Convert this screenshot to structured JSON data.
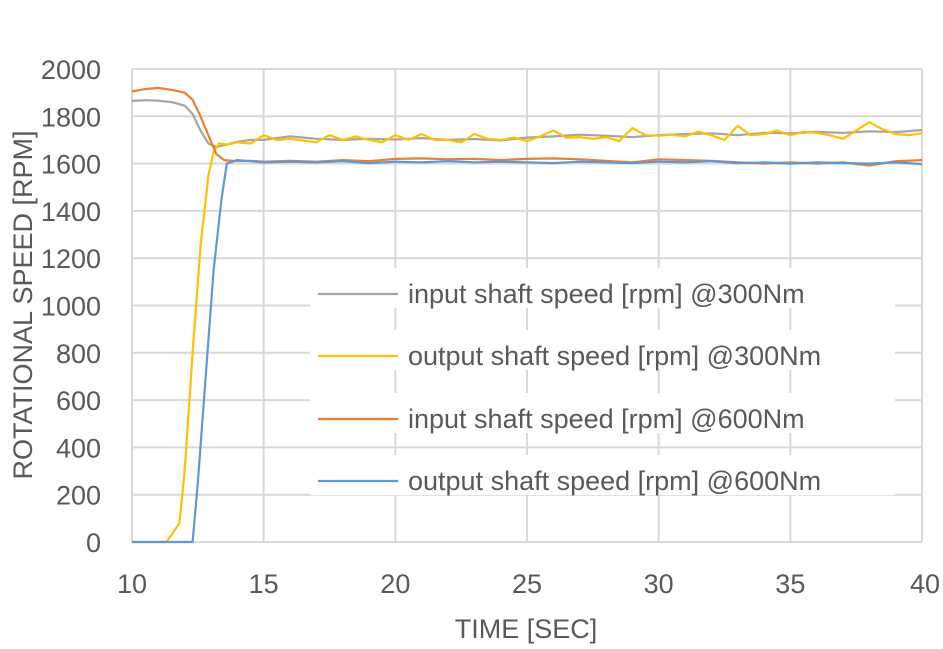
{
  "chart_data": {
    "type": "line",
    "title": "",
    "xlabel": "TIME [SEC]",
    "ylabel": "ROTATIONAL SPEED [RPM]",
    "xlim": [
      10,
      40
    ],
    "ylim": [
      0,
      2000
    ],
    "xticks": [
      10,
      15,
      20,
      25,
      30,
      35,
      40
    ],
    "yticks": [
      0,
      200,
      400,
      600,
      800,
      1000,
      1200,
      1400,
      1600,
      1800,
      2000
    ],
    "grid": true,
    "legend_position": "center-right",
    "series": [
      {
        "name": "input shaft speed [rpm] @300Nm",
        "color": "#a5a5a5",
        "x": [
          10,
          10.5,
          11,
          11.5,
          12,
          12.3,
          12.6,
          12.9,
          13.2,
          13.5,
          14,
          14.5,
          15,
          15.5,
          16,
          17,
          18,
          19,
          20,
          21,
          22,
          23,
          24,
          25,
          26,
          27,
          28,
          29,
          30,
          31,
          32,
          33,
          34,
          35,
          36,
          37,
          38,
          39,
          40
        ],
        "y": [
          1865,
          1868,
          1866,
          1860,
          1845,
          1810,
          1740,
          1685,
          1670,
          1678,
          1692,
          1700,
          1700,
          1708,
          1715,
          1705,
          1700,
          1705,
          1702,
          1708,
          1700,
          1704,
          1698,
          1710,
          1715,
          1722,
          1718,
          1712,
          1720,
          1725,
          1728,
          1720,
          1730,
          1728,
          1734,
          1730,
          1736,
          1733,
          1742
        ]
      },
      {
        "name": "output shaft speed [rpm] @300Nm",
        "color": "#ffc000",
        "x": [
          10,
          10.5,
          11,
          11.3,
          11.5,
          11.8,
          12,
          12.3,
          12.6,
          12.9,
          13.1,
          13.3,
          13.6,
          14,
          14.5,
          15,
          15.5,
          16,
          17,
          17.5,
          18,
          18.5,
          19,
          19.5,
          20,
          20.5,
          21,
          21.5,
          22,
          22.5,
          23,
          23.5,
          24,
          24.5,
          25,
          25.5,
          26,
          26.5,
          27,
          27.5,
          28,
          28.5,
          29,
          29.5,
          30,
          30.5,
          31,
          31.5,
          32,
          32.5,
          33,
          33.5,
          34,
          34.5,
          35,
          35.5,
          36,
          36.5,
          37,
          37.5,
          38,
          38.5,
          39,
          39.5,
          40
        ],
        "y": [
          0,
          0,
          0,
          0,
          30,
          80,
          300,
          800,
          1250,
          1550,
          1650,
          1685,
          1680,
          1690,
          1685,
          1720,
          1700,
          1705,
          1690,
          1720,
          1700,
          1715,
          1700,
          1690,
          1720,
          1700,
          1725,
          1700,
          1700,
          1690,
          1725,
          1705,
          1700,
          1710,
          1695,
          1715,
          1740,
          1710,
          1712,
          1705,
          1712,
          1695,
          1750,
          1720,
          1718,
          1722,
          1715,
          1735,
          1720,
          1700,
          1760,
          1720,
          1725,
          1740,
          1720,
          1735,
          1730,
          1720,
          1705,
          1740,
          1775,
          1745,
          1725,
          1720,
          1728
        ]
      },
      {
        "name": "input shaft speed [rpm] @600Nm",
        "color": "#ed7d31",
        "x": [
          10,
          10.5,
          11,
          11.5,
          12,
          12.3,
          12.6,
          12.9,
          13.2,
          13.5,
          14,
          14.5,
          15,
          16,
          17,
          18,
          19,
          20,
          21,
          22,
          23,
          24,
          25,
          26,
          27,
          28,
          29,
          30,
          31,
          32,
          33,
          34,
          35,
          36,
          37,
          38,
          39,
          40
        ],
        "y": [
          1905,
          1915,
          1920,
          1912,
          1900,
          1870,
          1800,
          1720,
          1640,
          1615,
          1610,
          1612,
          1608,
          1612,
          1608,
          1615,
          1610,
          1620,
          1622,
          1618,
          1620,
          1615,
          1620,
          1622,
          1618,
          1612,
          1605,
          1618,
          1615,
          1612,
          1605,
          1600,
          1605,
          1600,
          1605,
          1592,
          1610,
          1615
        ]
      },
      {
        "name": "output shaft speed [rpm] @600Nm",
        "color": "#5b9bd5",
        "x": [
          10,
          10.5,
          11,
          11.5,
          12,
          12.3,
          12.5,
          12.8,
          13.1,
          13.4,
          13.6,
          14,
          14.5,
          15,
          16,
          17,
          18,
          19,
          20,
          21,
          22,
          23,
          24,
          25,
          26,
          27,
          28,
          29,
          30,
          31,
          32,
          33,
          34,
          35,
          36,
          37,
          38,
          39,
          40
        ],
        "y": [
          0,
          0,
          0,
          0,
          0,
          0,
          250,
          700,
          1150,
          1450,
          1600,
          1615,
          1610,
          1605,
          1608,
          1605,
          1610,
          1602,
          1608,
          1605,
          1610,
          1605,
          1608,
          1605,
          1602,
          1608,
          1605,
          1602,
          1608,
          1605,
          1610,
          1602,
          1605,
          1600,
          1605,
          1602,
          1600,
          1605,
          1598
        ]
      }
    ]
  }
}
